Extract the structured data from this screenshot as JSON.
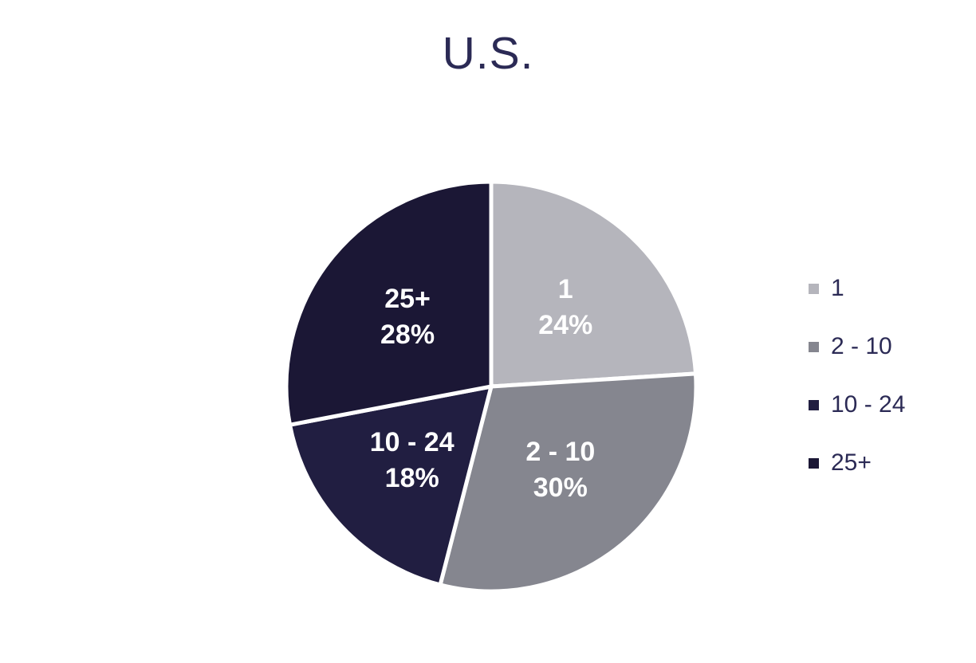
{
  "title": "U.S.",
  "chart_data": {
    "type": "pie",
    "title": "U.S.",
    "categories": [
      "1",
      "2 - 10",
      "10 - 24",
      "25+"
    ],
    "values": [
      24,
      30,
      18,
      28
    ],
    "unit": "%",
    "slice_labels": [
      {
        "line1": "1",
        "line2": "24%"
      },
      {
        "line1": "2 - 10",
        "line2": "30%"
      },
      {
        "line1": "10 - 24",
        "line2": "18%"
      },
      {
        "line1": "25+",
        "line2": "28%"
      }
    ],
    "colors": [
      "#b5b5bc",
      "#85868f",
      "#211e41",
      "#1b1735"
    ],
    "start_angle_deg": 0,
    "direction": "clockwise",
    "separator_color": "#ffffff",
    "legend": {
      "position": "right",
      "entries": [
        "1",
        "2 - 10",
        "10 - 24",
        "25+"
      ]
    }
  },
  "styles": {
    "background": "#ffffff",
    "title_color": "#2b2a55",
    "legend_text_color": "#2b2a55",
    "slice_label_color": "#ffffff"
  }
}
